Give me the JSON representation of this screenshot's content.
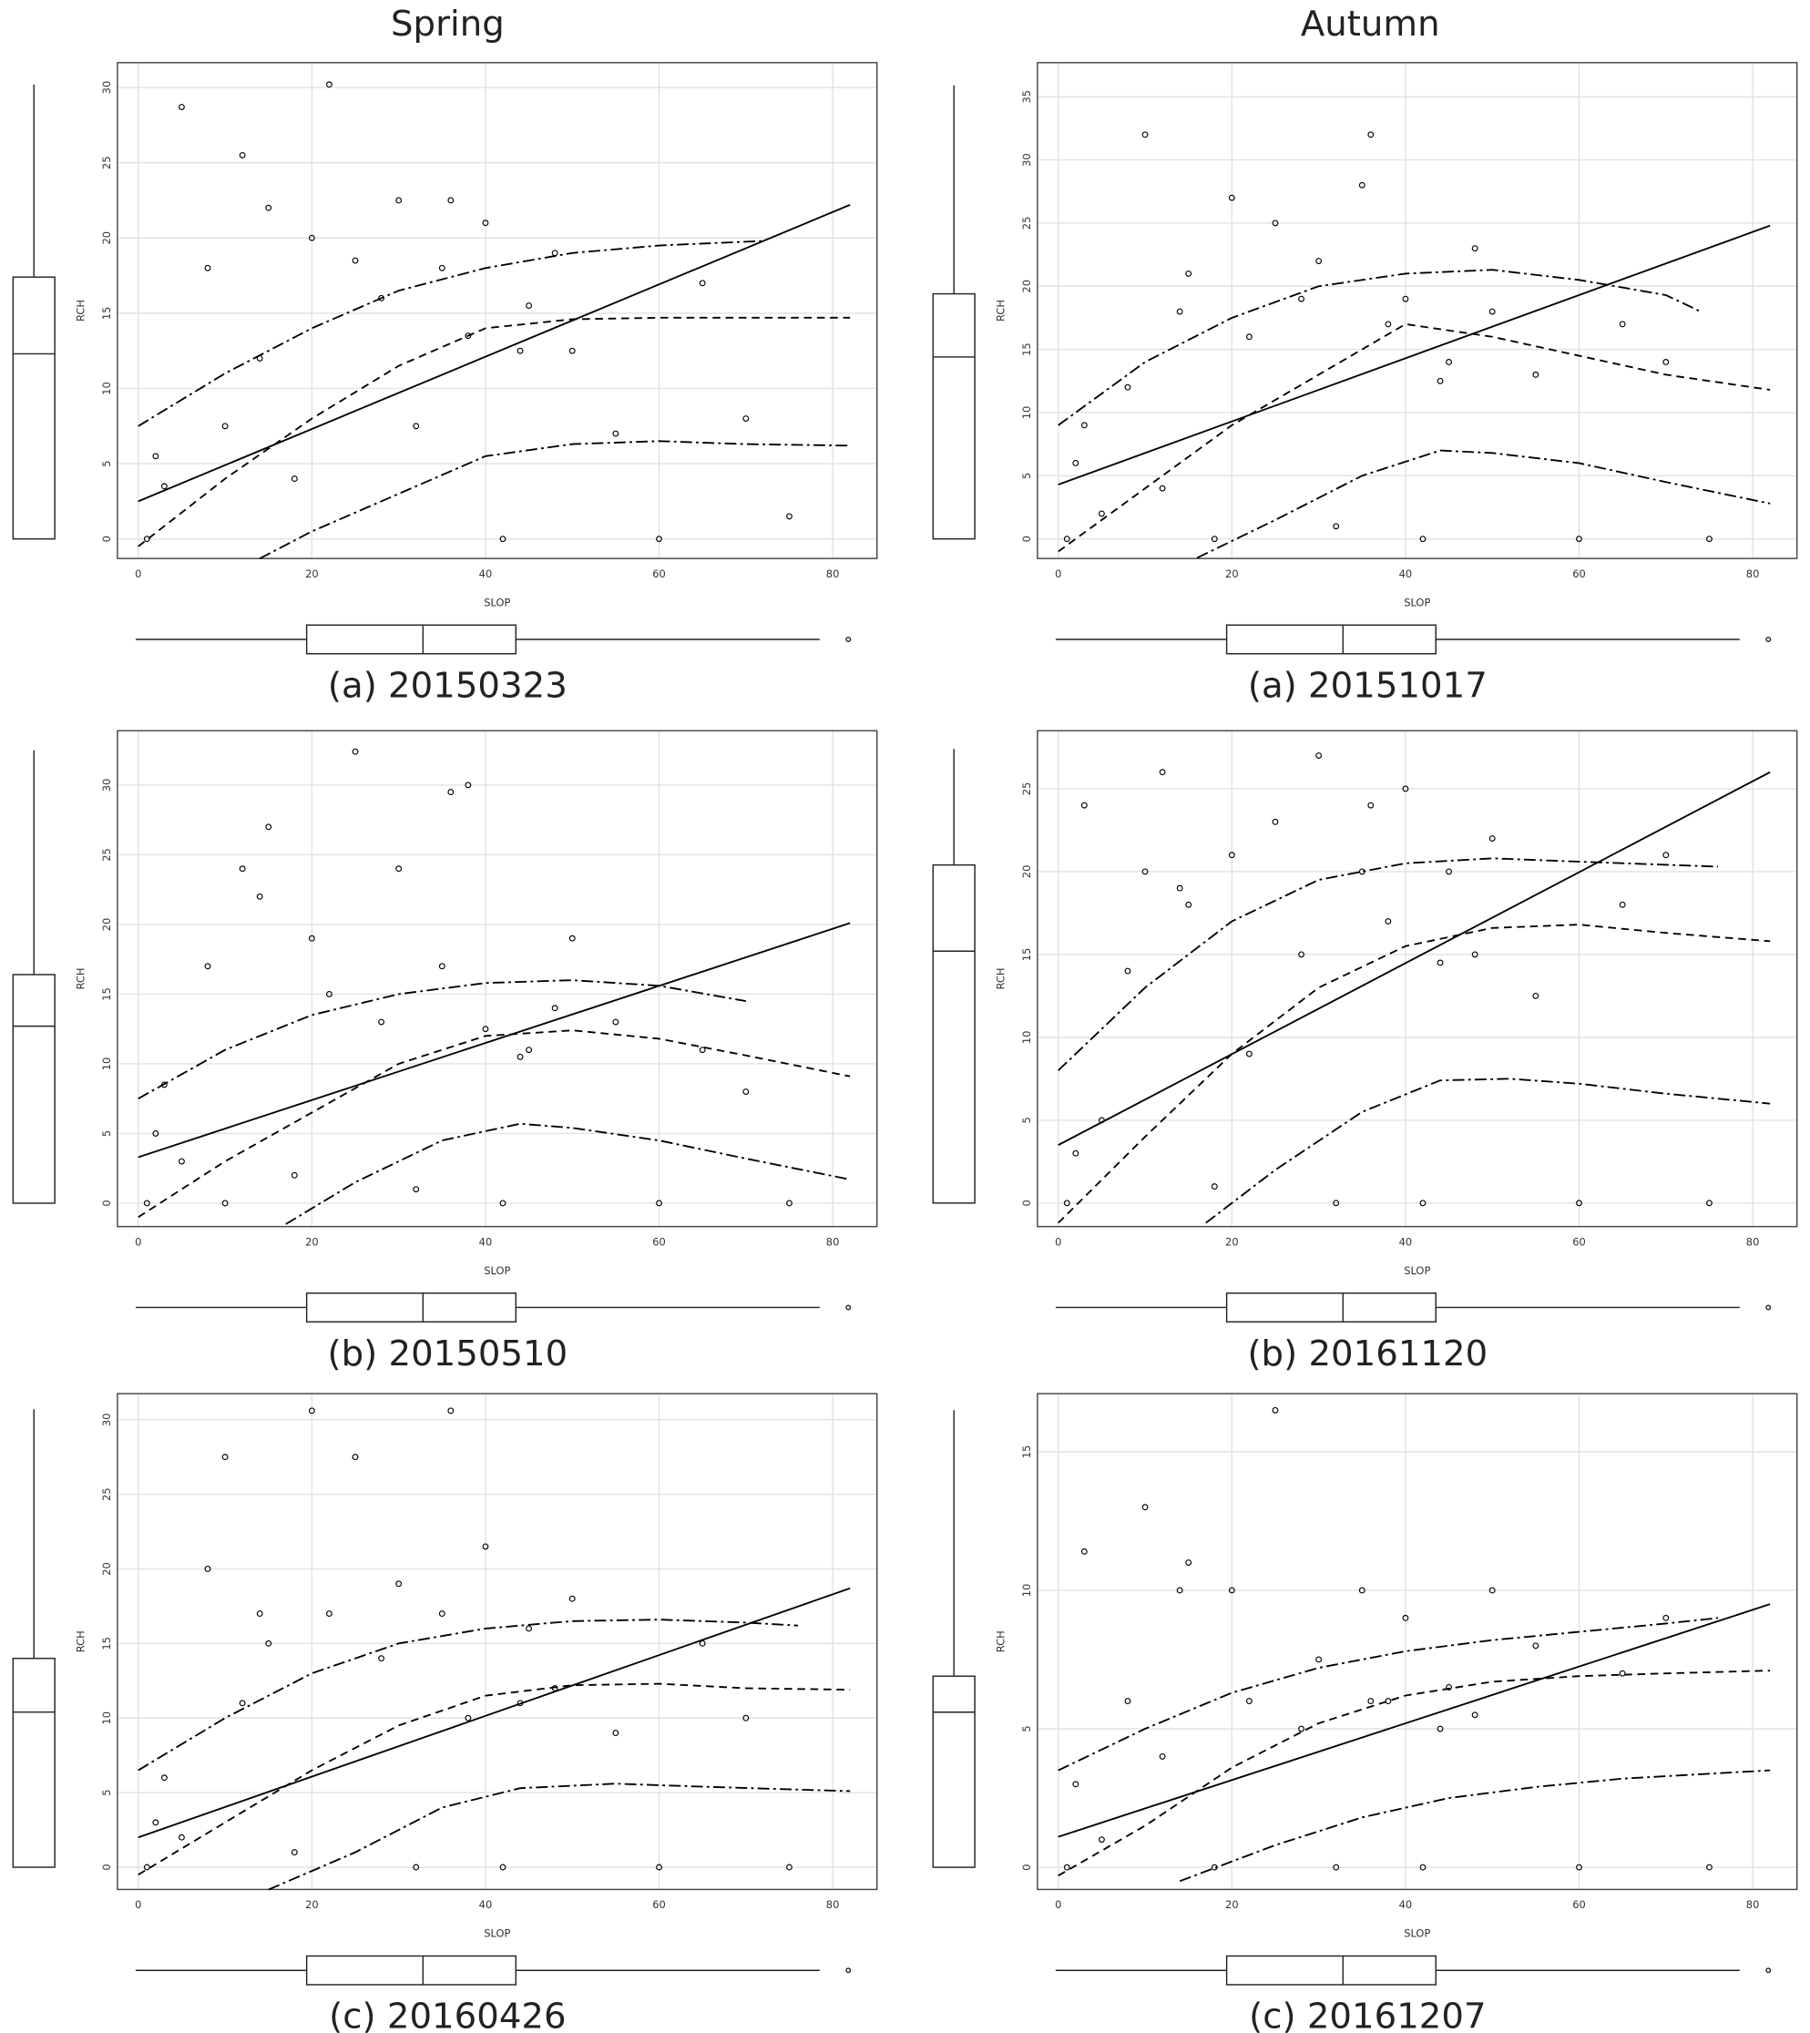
{
  "column_titles": [
    "Spring",
    "Autumn"
  ],
  "chart_data": [
    {
      "type": "scatter",
      "title": "(a) 20150323",
      "xlabel": "SLOP",
      "ylabel": "RCH",
      "xlim": [
        -2.4,
        85.1
      ],
      "ylim": [
        -1.3,
        31.65
      ],
      "xticks": [
        0,
        20,
        40,
        60,
        80
      ],
      "yticks": [
        0,
        5,
        10,
        15,
        20,
        25,
        30
      ],
      "grid": true,
      "color": "#000000",
      "points": {
        "x": [
          1,
          3,
          5,
          8,
          10,
          12,
          15,
          18,
          20,
          22,
          25,
          28,
          30,
          32,
          35,
          38,
          40,
          42,
          45,
          48,
          50,
          55,
          60,
          65,
          70,
          75,
          2,
          14,
          36,
          44
        ],
        "y": [
          0,
          3.5,
          28.7,
          18,
          7.5,
          25.5,
          22,
          4,
          20,
          30.2,
          18.5,
          16,
          22.5,
          7.5,
          18,
          13.5,
          21,
          0,
          15.5,
          19,
          12.5,
          7,
          0,
          17,
          8,
          1.5,
          5.5,
          12,
          22.5,
          12.5
        ]
      },
      "lines": [
        {
          "style": "solid",
          "x": [
            0,
            82
          ],
          "y": [
            2.5,
            22.2
          ]
        },
        {
          "style": "dashed",
          "x": [
            0,
            10,
            20,
            30,
            40,
            50,
            60,
            70,
            82
          ],
          "y": [
            -0.5,
            4,
            8,
            11.5,
            14,
            14.6,
            14.7,
            14.7,
            14.7
          ]
        },
        {
          "style": "dotdash",
          "x": [
            0,
            10,
            20,
            30,
            40,
            50,
            60,
            72
          ],
          "y": [
            7.5,
            11,
            14,
            16.5,
            18,
            19,
            19.5,
            19.8
          ]
        },
        {
          "style": "dotdash",
          "x": [
            14,
            20,
            30,
            40,
            50,
            60,
            70,
            82
          ],
          "y": [
            -1.3,
            0.5,
            3,
            5.5,
            6.3,
            6.5,
            6.3,
            6.2
          ]
        }
      ],
      "x_box": {
        "low": -0.3,
        "q1": 19.4,
        "median": 32.8,
        "q3": 43.5,
        "high": 78.5,
        "outliers": [
          81.8
        ]
      },
      "y_box": {
        "low": 0,
        "q1": 0,
        "median": 12.3,
        "q3": 17.4,
        "high": 30.2
      }
    },
    {
      "type": "scatter",
      "title": "(a) 20151017",
      "xlabel": "SLOP",
      "ylabel": "RCH",
      "xlim": [
        -2.4,
        85.1
      ],
      "ylim": [
        -1.55,
        37.7
      ],
      "xticks": [
        0,
        20,
        40,
        60,
        80
      ],
      "yticks": [
        0,
        5,
        10,
        15,
        20,
        25,
        30,
        35
      ],
      "grid": true,
      "color": "#000000",
      "points": {
        "x": [
          1,
          3,
          5,
          8,
          10,
          12,
          15,
          18,
          20,
          22,
          25,
          28,
          30,
          32,
          35,
          38,
          40,
          42,
          45,
          48,
          50,
          55,
          60,
          65,
          70,
          75,
          2,
          14,
          36,
          44
        ],
        "y": [
          0,
          9,
          2,
          12,
          32,
          4,
          21,
          0,
          27,
          16,
          25,
          19,
          22,
          1,
          28,
          17,
          19,
          0,
          14,
          23,
          18,
          13,
          0,
          17,
          14,
          0,
          6,
          18,
          32,
          12.5
        ]
      },
      "lines": [
        {
          "style": "solid",
          "x": [
            0,
            82
          ],
          "y": [
            4.3,
            24.8
          ]
        },
        {
          "style": "dashed",
          "x": [
            0,
            10,
            20,
            30,
            40,
            50,
            60,
            70,
            82
          ],
          "y": [
            -1,
            4,
            9,
            13,
            17,
            16,
            14.5,
            13,
            11.8
          ]
        },
        {
          "style": "dotdash",
          "x": [
            0,
            10,
            20,
            30,
            40,
            50,
            60,
            70,
            74
          ],
          "y": [
            9,
            14,
            17.5,
            20,
            21,
            21.3,
            20.5,
            19.3,
            18
          ]
        },
        {
          "style": "dotdash",
          "x": [
            16,
            25,
            35,
            44,
            50,
            60,
            70,
            82
          ],
          "y": [
            -1.5,
            1.5,
            5,
            7,
            6.8,
            6,
            4.5,
            2.8
          ]
        }
      ],
      "x_box": {
        "low": -0.3,
        "q1": 19.4,
        "median": 32.8,
        "q3": 43.5,
        "high": 78.5,
        "outliers": [
          81.8
        ]
      },
      "y_box": {
        "low": 0,
        "q1": 0,
        "median": 14.4,
        "q3": 19.4,
        "high": 35.9
      }
    },
    {
      "type": "scatter",
      "title": "(b) 20150510",
      "xlabel": "SLOP",
      "ylabel": "RCH",
      "xlim": [
        -2.4,
        85.1
      ],
      "ylim": [
        -1.68,
        33.9
      ],
      "xticks": [
        0,
        20,
        40,
        60,
        80
      ],
      "yticks": [
        0,
        5,
        10,
        15,
        20,
        25,
        30
      ],
      "grid": true,
      "color": "#000000",
      "points": {
        "x": [
          1,
          3,
          5,
          8,
          10,
          12,
          15,
          18,
          20,
          22,
          25,
          28,
          30,
          32,
          35,
          38,
          40,
          42,
          45,
          48,
          50,
          55,
          60,
          65,
          70,
          75,
          2,
          14,
          36,
          44
        ],
        "y": [
          0,
          8.5,
          3,
          17,
          0,
          24,
          27,
          2,
          19,
          15,
          32.4,
          13,
          24,
          1,
          17,
          30,
          12.5,
          0,
          11,
          14,
          19,
          13,
          0,
          11,
          8,
          0,
          5,
          22,
          29.5,
          10.5
        ]
      },
      "lines": [
        {
          "style": "solid",
          "x": [
            0,
            82
          ],
          "y": [
            3.3,
            20.1
          ]
        },
        {
          "style": "dashed",
          "x": [
            0,
            10,
            20,
            30,
            40,
            50,
            60,
            70,
            82
          ],
          "y": [
            -1,
            3,
            6.5,
            10,
            12,
            12.4,
            11.8,
            10.6,
            9.1
          ]
        },
        {
          "style": "dotdash",
          "x": [
            0,
            10,
            20,
            30,
            40,
            50,
            60,
            70
          ],
          "y": [
            7.5,
            11,
            13.5,
            15,
            15.8,
            16,
            15.6,
            14.5
          ]
        },
        {
          "style": "dotdash",
          "x": [
            17,
            25,
            35,
            44,
            50,
            60,
            70,
            82
          ],
          "y": [
            -1.5,
            1.5,
            4.5,
            5.7,
            5.4,
            4.5,
            3.2,
            1.7
          ]
        }
      ],
      "x_box": {
        "low": -0.3,
        "q1": 19.4,
        "median": 32.8,
        "q3": 43.5,
        "high": 78.5,
        "outliers": [
          81.8
        ]
      },
      "y_box": {
        "low": 0,
        "q1": 0,
        "median": 12.7,
        "q3": 16.4,
        "high": 32.5
      }
    },
    {
      "type": "scatter",
      "title": "(b) 20161120",
      "xlabel": "SLOP",
      "ylabel": "RCH",
      "xlim": [
        -2.4,
        85.1
      ],
      "ylim": [
        -1.42,
        28.5
      ],
      "xticks": [
        0,
        20,
        40,
        60,
        80
      ],
      "yticks": [
        0,
        5,
        10,
        15,
        20,
        25
      ],
      "grid": true,
      "color": "#000000",
      "points": {
        "x": [
          1,
          3,
          5,
          8,
          10,
          12,
          15,
          18,
          20,
          22,
          25,
          28,
          30,
          32,
          35,
          38,
          40,
          42,
          45,
          48,
          50,
          55,
          60,
          65,
          70,
          75,
          2,
          14,
          36,
          44
        ],
        "y": [
          0,
          24,
          5,
          14,
          20,
          26,
          18,
          1,
          21,
          9,
          23,
          15,
          27,
          0,
          20,
          17,
          25,
          0,
          20,
          15,
          22,
          12.5,
          0,
          18,
          21,
          0,
          3,
          19,
          24,
          14.5
        ]
      },
      "lines": [
        {
          "style": "solid",
          "x": [
            0,
            82
          ],
          "y": [
            3.5,
            26
          ]
        },
        {
          "style": "dashed",
          "x": [
            0,
            10,
            20,
            30,
            40,
            50,
            60,
            70,
            82
          ],
          "y": [
            -1.2,
            4,
            9,
            13,
            15.5,
            16.6,
            16.8,
            16.3,
            15.8
          ]
        },
        {
          "style": "dotdash",
          "x": [
            0,
            10,
            20,
            30,
            40,
            50,
            60,
            76
          ],
          "y": [
            8,
            13,
            17,
            19.5,
            20.5,
            20.8,
            20.6,
            20.3
          ]
        },
        {
          "style": "dotdash",
          "x": [
            17,
            25,
            35,
            44,
            52,
            60,
            70,
            82
          ],
          "y": [
            -1.2,
            2,
            5.5,
            7.4,
            7.5,
            7.2,
            6.6,
            6
          ]
        }
      ],
      "x_box": {
        "low": -0.3,
        "q1": 19.4,
        "median": 32.8,
        "q3": 43.5,
        "high": 78.5,
        "outliers": [
          81.8
        ]
      },
      "y_box": {
        "low": 0,
        "q1": 0,
        "median": 15.2,
        "q3": 20.4,
        "high": 27.4
      }
    },
    {
      "type": "scatter",
      "title": "(c) 20160426",
      "xlabel": "SLOP",
      "ylabel": "RCH",
      "xlim": [
        -2.4,
        85.1
      ],
      "ylim": [
        -1.49,
        31.75
      ],
      "xticks": [
        0,
        20,
        40,
        60,
        80
      ],
      "yticks": [
        0,
        5,
        10,
        15,
        20,
        25,
        30
      ],
      "grid": true,
      "color": "#000000",
      "points": {
        "x": [
          1,
          3,
          5,
          8,
          10,
          12,
          15,
          18,
          20,
          22,
          25,
          28,
          30,
          32,
          35,
          38,
          40,
          42,
          45,
          48,
          50,
          55,
          60,
          65,
          70,
          75,
          2,
          14,
          36,
          44
        ],
        "y": [
          0,
          6,
          2,
          20,
          27.5,
          11,
          15,
          1,
          30.6,
          17,
          27.5,
          14,
          19,
          0,
          17,
          10,
          21.5,
          0,
          16,
          12,
          18,
          9,
          0,
          15,
          10,
          0,
          3,
          17,
          30.6,
          11
        ]
      },
      "lines": [
        {
          "style": "solid",
          "x": [
            0,
            82
          ],
          "y": [
            2,
            18.7
          ]
        },
        {
          "style": "dashed",
          "x": [
            0,
            10,
            20,
            30,
            40,
            50,
            60,
            70,
            82
          ],
          "y": [
            -0.5,
            3,
            6.5,
            9.5,
            11.5,
            12.2,
            12.3,
            12,
            11.9
          ]
        },
        {
          "style": "dotdash",
          "x": [
            0,
            10,
            20,
            30,
            40,
            50,
            60,
            70,
            76
          ],
          "y": [
            6.5,
            10,
            13,
            15,
            16,
            16.5,
            16.6,
            16.4,
            16.2
          ]
        },
        {
          "style": "dotdash",
          "x": [
            15,
            25,
            35,
            44,
            55,
            65,
            82
          ],
          "y": [
            -1.5,
            1,
            4,
            5.3,
            5.6,
            5.4,
            5.1
          ]
        }
      ],
      "x_box": {
        "low": -0.3,
        "q1": 19.4,
        "median": 32.8,
        "q3": 43.5,
        "high": 78.5,
        "outliers": [
          81.8
        ]
      },
      "y_box": {
        "low": 0,
        "q1": 0,
        "median": 10.4,
        "q3": 14,
        "high": 30.7
      }
    },
    {
      "type": "scatter",
      "title": "(c) 20161207",
      "xlabel": "SLOP",
      "ylabel": "RCH",
      "xlim": [
        -2.4,
        85.1
      ],
      "ylim": [
        -0.8,
        17.1
      ],
      "xticks": [
        0,
        20,
        40,
        60,
        80
      ],
      "yticks": [
        0,
        5,
        10,
        15
      ],
      "grid": true,
      "color": "#000000",
      "points": {
        "x": [
          1,
          3,
          5,
          8,
          10,
          12,
          15,
          18,
          20,
          22,
          25,
          28,
          30,
          32,
          35,
          38,
          40,
          42,
          45,
          48,
          50,
          55,
          60,
          65,
          70,
          75,
          2,
          14,
          36,
          44
        ],
        "y": [
          0,
          11.4,
          1,
          6,
          13,
          4,
          11,
          0,
          10,
          6,
          16.5,
          5,
          7.5,
          0,
          10,
          6,
          9,
          0,
          6.5,
          5.5,
          10,
          8,
          0,
          7,
          9,
          0,
          3,
          10,
          6,
          5
        ]
      },
      "lines": [
        {
          "style": "solid",
          "x": [
            0,
            82
          ],
          "y": [
            1.1,
            9.5
          ]
        },
        {
          "style": "dashed",
          "x": [
            0,
            10,
            20,
            30,
            40,
            50,
            60,
            70,
            82
          ],
          "y": [
            -0.3,
            1.5,
            3.6,
            5.2,
            6.2,
            6.7,
            6.9,
            7,
            7.1
          ]
        },
        {
          "style": "dotdash",
          "x": [
            0,
            10,
            20,
            30,
            40,
            50,
            60,
            70,
            76
          ],
          "y": [
            3.5,
            5,
            6.3,
            7.2,
            7.8,
            8.2,
            8.5,
            8.8,
            9
          ]
        },
        {
          "style": "dotdash",
          "x": [
            14,
            25,
            35,
            45,
            55,
            65,
            82
          ],
          "y": [
            -0.5,
            0.8,
            1.8,
            2.5,
            2.9,
            3.2,
            3.5
          ]
        }
      ],
      "x_box": {
        "low": -0.3,
        "q1": 19.4,
        "median": 32.8,
        "q3": 43.5,
        "high": 78.5,
        "outliers": [
          81.8
        ]
      },
      "y_box": {
        "low": 0,
        "q1": 0,
        "median": 5.6,
        "q3": 6.9,
        "high": 16.5
      }
    }
  ]
}
